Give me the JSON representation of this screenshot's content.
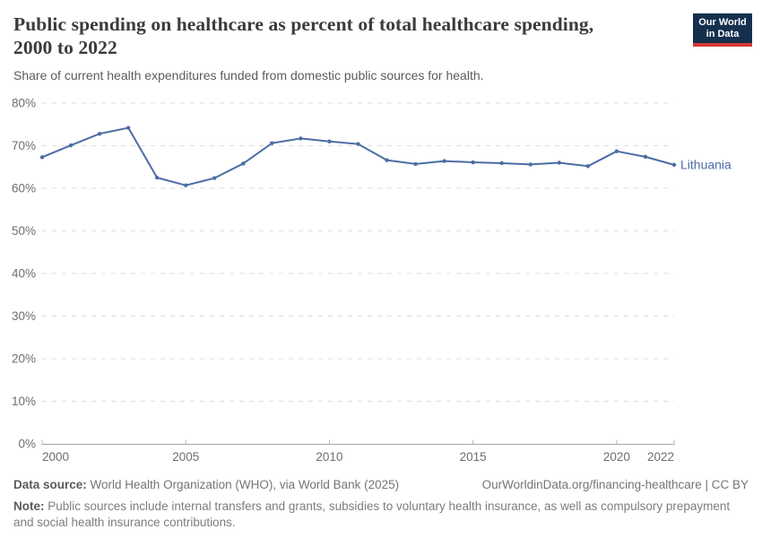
{
  "header": {
    "title": "Public spending on healthcare as percent of total healthcare spending, 2000 to 2022",
    "subtitle": "Share of current health expenditures funded from domestic public sources for health.",
    "logo_line1": "Our World",
    "logo_line2": "in Data"
  },
  "chart_data": {
    "type": "line",
    "title": "Public spending on healthcare as percent of total healthcare spending, 2000 to 2022",
    "xlabel": "",
    "ylabel": "",
    "xlim": [
      2000,
      2022
    ],
    "ylim": [
      0,
      80
    ],
    "grid": "horizontal-dashed",
    "legend_position": "end-of-line-label",
    "yticks": [
      0,
      10,
      20,
      30,
      40,
      50,
      60,
      70,
      80
    ],
    "ytick_suffix": "%",
    "xticks": [
      2000,
      2005,
      2010,
      2015,
      2020,
      2022
    ],
    "series": [
      {
        "name": "Lithuania",
        "x": [
          2000,
          2001,
          2002,
          2003,
          2004,
          2005,
          2006,
          2007,
          2008,
          2009,
          2010,
          2011,
          2012,
          2013,
          2014,
          2015,
          2016,
          2017,
          2018,
          2019,
          2020,
          2021,
          2022
        ],
        "values": [
          67.3,
          70.1,
          72.8,
          74.2,
          62.5,
          60.7,
          62.4,
          65.8,
          70.6,
          71.7,
          71.0,
          70.4,
          66.6,
          65.7,
          66.4,
          66.1,
          65.9,
          65.6,
          66.0,
          65.2,
          68.7,
          67.4,
          65.5
        ]
      }
    ],
    "entity_label": "Lithuania"
  },
  "colors": {
    "line": "#4c6da5",
    "grid": "#dcdcdc",
    "axis": "#a5a5a5",
    "tick": "#b5b5b5",
    "axis_text": "#6e6e6e",
    "logo_navy": "#15304f",
    "logo_red": "#d33a34"
  },
  "footer": {
    "source_label": "Data source:",
    "source_value": " World Health Organization (WHO), via World Bank (2025)",
    "link": "OurWorldinData.org/financing-healthcare | CC BY",
    "note_label": "Note:",
    "note_value": " Public sources include internal transfers and grants, subsidies to voluntary health insurance, as well as compulsory prepayment and social health insurance contributions."
  }
}
